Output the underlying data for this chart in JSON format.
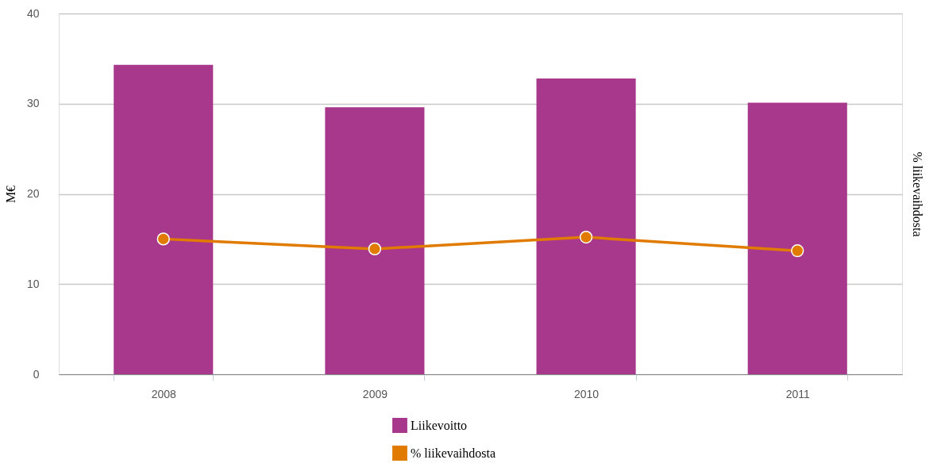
{
  "chart_data": {
    "type": "bar",
    "categories": [
      "2008",
      "2009",
      "2010",
      "2011"
    ],
    "ylabel": "M€",
    "y2label": "% liikevaihdosta",
    "ylim": [
      0,
      40
    ],
    "yticks": [
      0,
      10,
      20,
      30,
      40
    ],
    "grid": "y",
    "legend": "bottom",
    "marker": "circle",
    "series": [
      {
        "name": "Liikevoitto",
        "color": "#a8388c",
        "values": [
          34.3,
          29.6,
          32.8,
          30.1
        ]
      },
      {
        "name": "% liikevaihdosta",
        "type": "line",
        "color": "#e07b00",
        "values": [
          15.0,
          13.9,
          15.2,
          13.7
        ]
      }
    ]
  }
}
